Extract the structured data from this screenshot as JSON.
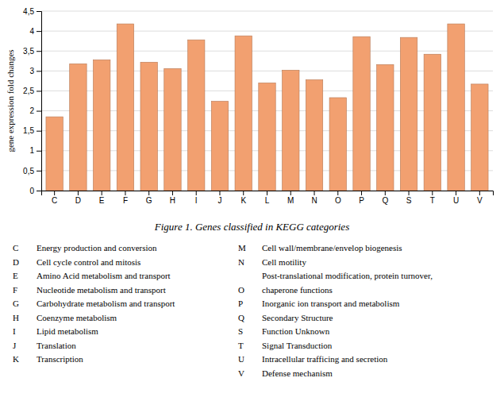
{
  "chart_data": {
    "type": "bar",
    "title": "Figure 1. Genes classified in KEGG categories",
    "y_label": "gene expression fold changes",
    "categories": [
      "C",
      "D",
      "E",
      "F",
      "G",
      "H",
      "I",
      "J",
      "K",
      "L",
      "M",
      "N",
      "O",
      "P",
      "Q",
      "S",
      "T",
      "U",
      "V"
    ],
    "values": [
      1.85,
      3.18,
      3.28,
      4.18,
      3.22,
      3.06,
      3.78,
      2.24,
      3.88,
      2.7,
      3.02,
      2.78,
      2.33,
      3.86,
      3.16,
      3.84,
      3.42,
      4.18,
      2.67
    ],
    "color": "#F2A070",
    "ylim": [
      0,
      4.5
    ],
    "yticks": [
      0,
      {
        "value": 0.5,
        "label": "0,5"
      },
      1,
      {
        "value": 1.5,
        "label": "1,5"
      },
      2,
      {
        "value": 2.5,
        "label": "2,5"
      },
      3,
      {
        "value": 3.5,
        "label": "3,5"
      },
      4,
      {
        "value": 4.5,
        "label": "4,5"
      }
    ],
    "grid": true,
    "annotations": [
      [
        {
          "key": "C",
          "text": "Energy production and conversion"
        },
        {
          "key": "D",
          "text": "Cell cycle control and mitosis"
        },
        {
          "key": "E",
          "text": "Amino Acid metabolism and transport"
        },
        {
          "key": "F",
          "text": "Nucleotide metabolism and transport"
        },
        {
          "key": "G",
          "text": "Carbohydrate metabolism and transport"
        },
        {
          "key": "H",
          "text": "Coenzyme metabolism"
        },
        {
          "key": "I",
          "text": "Lipid metabolism"
        },
        {
          "key": "J",
          "text": "Translation"
        },
        {
          "key": "K",
          "text": "Transcription"
        }
      ],
      [
        {
          "key": "M",
          "text": "Cell wall/membrane/envelop biogenesis"
        },
        {
          "key": "N",
          "text": "Cell motility"
        },
        {
          "text": "Post-translational modification, protein turnover,"
        },
        {
          "key": "O",
          "text": "chaperone functions"
        },
        {
          "key": "P",
          "text": "Inorganic ion transport and metabolism"
        },
        {
          "key": "Q",
          "text": "Secondary Structure"
        },
        {
          "key": "S",
          "text": "Function Unknown"
        },
        {
          "key": "T",
          "text": "Signal Transduction"
        },
        {
          "key": "U",
          "text": "Intracellular trafficing and secretion"
        },
        {
          "key": "V",
          "text": "Defense mechanism"
        }
      ]
    ]
  }
}
